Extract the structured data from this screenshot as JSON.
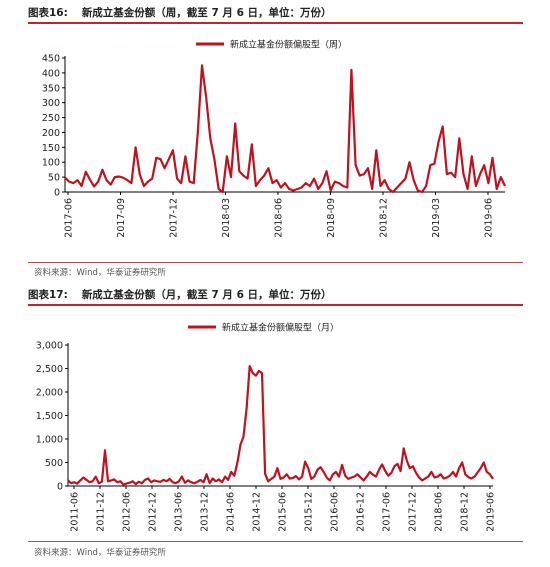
{
  "figure1": {
    "label": "图表16:",
    "title": "新成立基金份额（周，截至 7 月 6 日，单位：万份）",
    "source": "资料来源：Wind，华泰证券研究所"
  },
  "figure2": {
    "label": "图表17:",
    "title": "新成立基金份额（月，截至 7 月 6 日，单位：万份）",
    "source": "资料来源：Wind，华泰证券研究所"
  },
  "colors": {
    "series": "#c0111f",
    "axis": "#000000",
    "rule": "#b8282e"
  },
  "chart_data": [
    {
      "type": "line",
      "title": "",
      "legend_position": "top",
      "grid": false,
      "ylim": [
        0,
        450
      ],
      "yticks": [
        "0",
        "50",
        "100",
        "150",
        "200",
        "250",
        "300",
        "350",
        "400",
        "450"
      ],
      "xticks": [
        "2017-06",
        "2017-09",
        "2017-12",
        "2018-03",
        "2018-06",
        "2018-09",
        "2018-12",
        "2019-03",
        "2019-06"
      ],
      "series": [
        {
          "name": "新成立基金份额偏股型（周）",
          "values": [
            48,
            35,
            30,
            40,
            20,
            68,
            42,
            18,
            35,
            75,
            40,
            25,
            50,
            52,
            48,
            40,
            30,
            150,
            60,
            20,
            35,
            45,
            115,
            110,
            80,
            110,
            140,
            45,
            30,
            120,
            35,
            30,
            200,
            425,
            320,
            180,
            110,
            10,
            0,
            120,
            50,
            230,
            70,
            55,
            45,
            160,
            20,
            40,
            55,
            80,
            30,
            40,
            15,
            30,
            10,
            5,
            10,
            15,
            30,
            20,
            45,
            10,
            30,
            70,
            5,
            35,
            30,
            20,
            15,
            410,
            90,
            55,
            60,
            80,
            10,
            140,
            20,
            40,
            10,
            0,
            15,
            30,
            45,
            100,
            40,
            5,
            0,
            20,
            90,
            95,
            170,
            220,
            60,
            65,
            50,
            180,
            60,
            10,
            120,
            20,
            60,
            90,
            30,
            115,
            10,
            50,
            20
          ]
        }
      ]
    },
    {
      "type": "line",
      "title": "",
      "legend_position": "top",
      "grid": false,
      "ylim": [
        0,
        3000
      ],
      "yticks": [
        "0",
        "500",
        "1,000",
        "1,500",
        "2,000",
        "2,500",
        "3,000"
      ],
      "xticks": [
        "2011-06",
        "2011-12",
        "2012-06",
        "2012-12",
        "2013-06",
        "2013-12",
        "2014-06",
        "2014-12",
        "2015-06",
        "2015-12",
        "2016-06",
        "2016-12",
        "2017-06",
        "2017-12",
        "2018-06",
        "2018-12",
        "2019-06"
      ],
      "series": [
        {
          "name": "新成立基金份额偏股型（月）",
          "values": [
            120,
            60,
            80,
            50,
            120,
            180,
            130,
            80,
            100,
            200,
            60,
            90,
            760,
            100,
            120,
            140,
            80,
            100,
            30,
            50,
            70,
            100,
            40,
            90,
            60,
            130,
            160,
            80,
            120,
            100,
            90,
            130,
            100,
            150,
            80,
            60,
            100,
            200,
            70,
            120,
            80,
            60,
            90,
            130,
            80,
            250,
            60,
            160,
            100,
            140,
            80,
            200,
            130,
            300,
            220,
            500,
            880,
            1050,
            1650,
            2550,
            2400,
            2350,
            2450,
            2400,
            260,
            100,
            150,
            200,
            380,
            150,
            180,
            250,
            160,
            170,
            210,
            140,
            200,
            520,
            380,
            150,
            200,
            350,
            400,
            300,
            180,
            120,
            250,
            300,
            200,
            450,
            220,
            150,
            180,
            200,
            250,
            180,
            120,
            200,
            300,
            240,
            200,
            350,
            460,
            320,
            220,
            280,
            420,
            470,
            320,
            800,
            540,
            380,
            420,
            280,
            180,
            120,
            160,
            200,
            300,
            180,
            200,
            250,
            160,
            180,
            220,
            300,
            200,
            380,
            500,
            250,
            190,
            160,
            200,
            290,
            380,
            500,
            300,
            250,
            150
          ]
        }
      ]
    }
  ]
}
